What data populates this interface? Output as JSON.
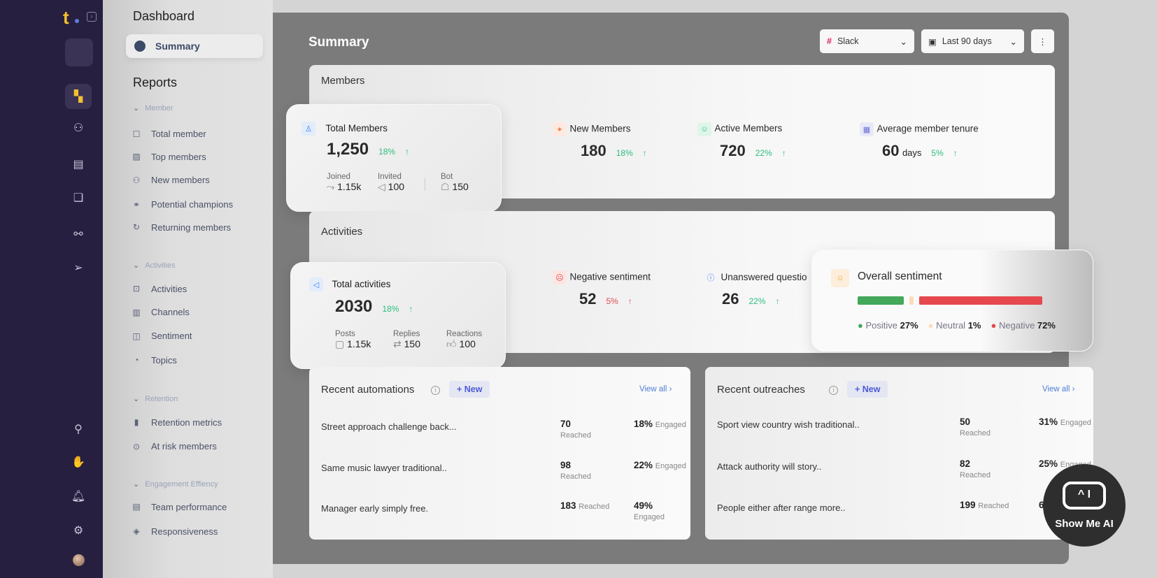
{
  "rail": {
    "logo": "t",
    "icons": [
      "dashboard-icon",
      "members-icon",
      "reports-icon",
      "chat-icon",
      "workflow-icon",
      "send-icon"
    ],
    "bottom_icons": [
      "add-user-icon",
      "handshake-icon",
      "bell-icon",
      "gear-icon"
    ]
  },
  "nav": {
    "dashboard": "Dashboard",
    "summary": "Summary",
    "reports": "Reports",
    "sections": [
      {
        "label": "Member",
        "items": [
          "Total member",
          "Top members",
          "New members",
          "Potential champions",
          "Returning members"
        ]
      },
      {
        "label": "Activities",
        "items": [
          "Activities",
          "Channels",
          "Sentiment",
          "Topics"
        ]
      },
      {
        "label": "Retention",
        "items": [
          "Retention metrics",
          "At risk members"
        ]
      },
      {
        "label": "Engagement Effiency",
        "items": [
          "Team performance",
          "Responsiveness"
        ]
      }
    ]
  },
  "header": {
    "title": "Summary",
    "source": "Slack",
    "range": "Last 90 days",
    "more": "⋮"
  },
  "members": {
    "title": "Members",
    "total": {
      "label": "Total Members",
      "value": "1,250",
      "change": "18%",
      "joined_label": "Joined",
      "joined": "1.15k",
      "invited_label": "Invited",
      "invited": "100",
      "bot_label": "Bot",
      "bot": "150"
    },
    "new": {
      "label": "New Members",
      "value": "180",
      "change": "18%"
    },
    "active": {
      "label": "Active Members",
      "value": "720",
      "change": "22%"
    },
    "tenure": {
      "label": "Average member tenure",
      "value": "60",
      "unit": "days",
      "change": "5%"
    }
  },
  "activities": {
    "title": "Activities",
    "total": {
      "label": "Total activities",
      "value": "2030",
      "change": "18%",
      "posts_label": "Posts",
      "posts": "1.15k",
      "replies_label": "Replies",
      "replies": "150",
      "reactions_label": "Reactions",
      "reactions": "100"
    },
    "negative": {
      "label": "Negative sentiment",
      "value": "52",
      "change": "5%"
    },
    "unanswered": {
      "label": "Unanswered questio",
      "value": "26",
      "change": "22%"
    }
  },
  "sentiment": {
    "title": "Overall sentiment",
    "positive_label": "Positive",
    "positive": "27%",
    "neutral_label": "Neutral",
    "neutral": "1%",
    "negative_label": "Negative",
    "negative": "72%",
    "positive_pct": 27,
    "neutral_pct": 1,
    "negative_pct": 72,
    "colors": {
      "positive": "#43a85a",
      "neutral": "#fbdcb8",
      "negative": "#e5484d"
    }
  },
  "automations": {
    "title": "Recent automations",
    "new": "+ New",
    "view_all": "View all",
    "rows": [
      {
        "name": "Street approach challenge back...",
        "reached": "70",
        "reached_label": "Reached",
        "engaged": "18%",
        "engaged_label": "Engaged"
      },
      {
        "name": "Same music lawyer traditional..",
        "reached": "98",
        "reached_label": "Reached",
        "engaged": "22%",
        "engaged_label": "Engaged"
      },
      {
        "name": "Manager early simply free.",
        "reached": "183",
        "reached_label": "Reached",
        "engaged": "49%",
        "engaged_label": "Engaged"
      }
    ]
  },
  "outreaches": {
    "title": "Recent outreaches",
    "new": "+ New",
    "view_all": "View all",
    "rows": [
      {
        "name": "Sport view country wish traditional..",
        "reached": "50",
        "reached_label": "Reached",
        "engaged": "31%",
        "engaged_label": "Engaged"
      },
      {
        "name": "Attack authority will story..",
        "reached": "82",
        "reached_label": "Reached",
        "engaged": "25%",
        "engaged_label": "Engaged"
      },
      {
        "name": "People either after range more..",
        "reached": "199",
        "reached_label": "Reached",
        "engaged": "6",
        "engaged_label": "En"
      }
    ]
  },
  "watermark": "Show Me AI"
}
